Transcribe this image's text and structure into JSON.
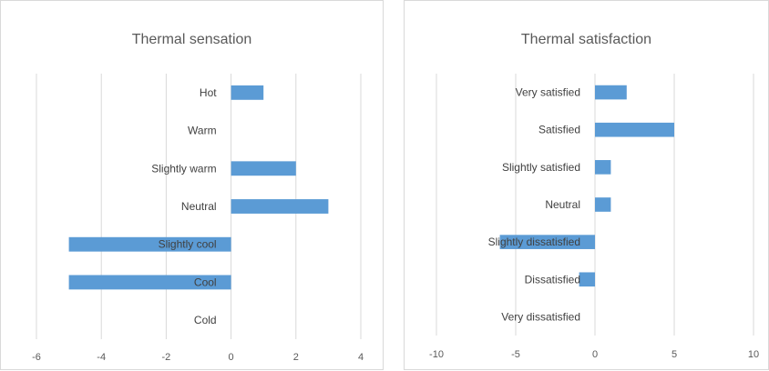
{
  "chart_data": [
    {
      "type": "bar",
      "orientation": "horizontal",
      "title": "Thermal sensation",
      "categories": [
        "Hot",
        "Warm",
        "Slightly warm",
        "Neutral",
        "Slightly cool",
        "Cool",
        "Cold"
      ],
      "values": [
        1,
        0,
        2,
        3,
        -5,
        -5,
        0
      ],
      "xlim": [
        -6,
        4
      ],
      "xticks": [
        -6,
        -4,
        -2,
        0,
        2,
        4
      ],
      "grid": true,
      "bar_color": "#5b9bd5"
    },
    {
      "type": "bar",
      "orientation": "horizontal",
      "title": "Thermal satisfaction",
      "categories": [
        "Very satisfied",
        "Satisfied",
        "Slightly satisfied",
        "Neutral",
        "Slightly dissatisfied",
        "Dissatisfied",
        "Very dissatisfied"
      ],
      "values": [
        2,
        5,
        1,
        1,
        -6,
        -1,
        0
      ],
      "xlim": [
        -10,
        10
      ],
      "xticks": [
        -10,
        -5,
        0,
        5,
        10
      ],
      "grid": true,
      "bar_color": "#5b9bd5"
    }
  ]
}
